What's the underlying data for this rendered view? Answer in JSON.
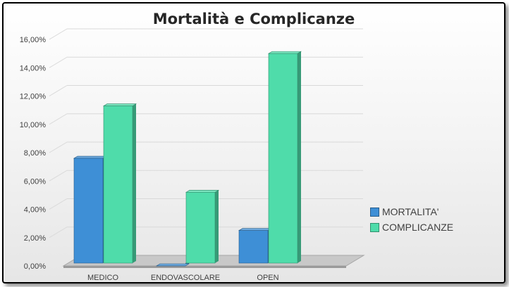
{
  "chart_data": {
    "type": "bar",
    "title": "Mortalità e Complicanze",
    "categories": [
      "MEDICO",
      "ENDOVASCOLARE",
      "OPEN"
    ],
    "series": [
      {
        "name": "MORTALITA'",
        "values": [
          7.6,
          0.0,
          2.5
        ],
        "color": "#3e8fd6"
      },
      {
        "name": "COMPLICANZE",
        "values": [
          11.3,
          5.2,
          15.0
        ],
        "color": "#4fdcaa"
      }
    ],
    "ylim": [
      0,
      16
    ],
    "yticks": [
      "0,00%",
      "2,00%",
      "4,00%",
      "6,00%",
      "8,00%",
      "10,00%",
      "12,00%",
      "14,00%",
      "16,00%"
    ],
    "grid": true,
    "legend_position": "right",
    "style": "3d-column"
  }
}
